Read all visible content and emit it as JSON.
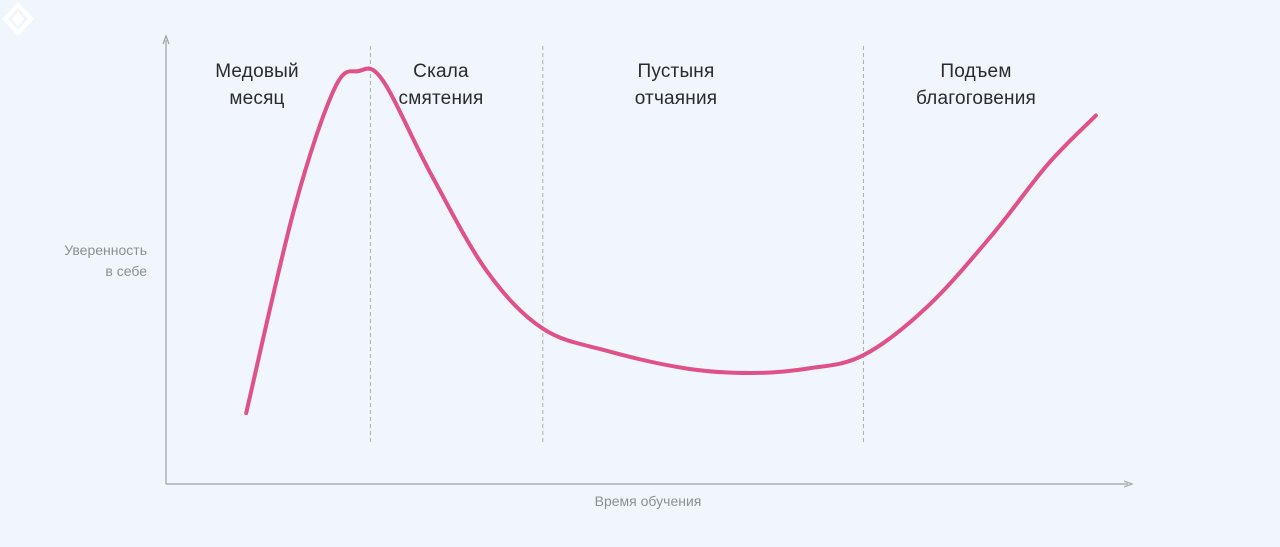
{
  "chart_data": {
    "type": "line",
    "xlabel": "Время обучения",
    "ylabel_lines": [
      "Уверенность",
      "в себе"
    ],
    "phases": [
      {
        "lines": [
          "Медовый",
          "месяц"
        ]
      },
      {
        "lines": [
          "Скала",
          "смятения"
        ]
      },
      {
        "lines": [
          "Пустыня",
          "отчаяния"
        ]
      },
      {
        "lines": [
          "Подъем",
          "благоговения"
        ]
      }
    ],
    "phase_boundaries": [
      2.55,
      4.7,
      8.7
    ],
    "xlim": [
      0,
      12
    ],
    "ylim": [
      0,
      10
    ],
    "series": [
      {
        "color": "#e0508a",
        "points": [
          [
            1.0,
            1.6
          ],
          [
            1.6,
            6.2
          ],
          [
            2.1,
            8.9
          ],
          [
            2.4,
            9.3
          ],
          [
            2.7,
            9.1
          ],
          [
            3.3,
            7.0
          ],
          [
            4.0,
            4.8
          ],
          [
            4.7,
            3.5
          ],
          [
            5.5,
            3.0
          ],
          [
            6.5,
            2.6
          ],
          [
            7.3,
            2.5
          ],
          [
            8.0,
            2.6
          ],
          [
            8.7,
            2.9
          ],
          [
            9.5,
            4.0
          ],
          [
            10.3,
            5.6
          ],
          [
            11.0,
            7.2
          ],
          [
            11.6,
            8.3
          ]
        ]
      }
    ],
    "grid": false
  },
  "colors": {
    "background": "#f0f6fc",
    "curve": "#e0508a",
    "axis": "#9aa0a8",
    "divider": "#a8adb5"
  },
  "logo_icon": "diamond-logo-icon"
}
